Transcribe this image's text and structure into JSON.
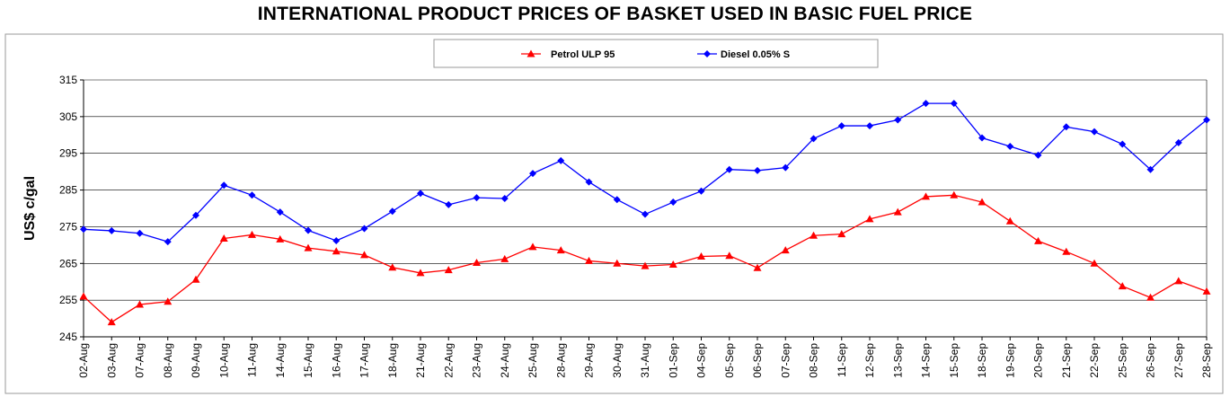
{
  "chart_data": {
    "type": "line",
    "title": "INTERNATIONAL PRODUCT PRICES OF BASKET USED IN BASIC FUEL PRICE",
    "xlabel": "",
    "ylabel": "US$ c/gal",
    "ylim": [
      245,
      315
    ],
    "yticks": [
      245,
      255,
      265,
      275,
      285,
      295,
      305,
      315
    ],
    "grid": "horizontal",
    "legend_position": "top-center",
    "categories": [
      "02-Aug",
      "03-Aug",
      "07-Aug",
      "08-Aug",
      "09-Aug",
      "10-Aug",
      "11-Aug",
      "14-Aug",
      "15-Aug",
      "16-Aug",
      "17-Aug",
      "18-Aug",
      "21-Aug",
      "22-Aug",
      "23-Aug",
      "24-Aug",
      "25-Aug",
      "28-Aug",
      "29-Aug",
      "30-Aug",
      "31-Aug",
      "01-Sep",
      "04-Sep",
      "05-Sep",
      "06-Sep",
      "07-Sep",
      "08-Sep",
      "11-Sep",
      "12-Sep",
      "13-Sep",
      "14-Sep",
      "15-Sep",
      "18-Sep",
      "19-Sep",
      "20-Sep",
      "21-Sep",
      "22-Sep",
      "25-Sep",
      "26-Sep",
      "27-Sep",
      "28-Sep"
    ],
    "series": [
      {
        "name": "Petrol ULP 95",
        "color": "#ff0000",
        "marker": "triangle",
        "values": [
          256.0,
          249.0,
          253.8,
          254.6,
          260.6,
          271.8,
          272.8,
          271.6,
          269.2,
          268.3,
          267.3,
          263.9,
          262.4,
          263.2,
          265.2,
          266.2,
          269.5,
          268.6,
          265.7,
          265.0,
          264.3,
          264.7,
          266.9,
          267.1,
          263.8,
          268.6,
          272.6,
          273.0,
          277.1,
          279.0,
          283.2,
          283.6,
          281.7,
          276.5,
          271.1,
          268.2,
          265.0,
          258.8,
          255.7,
          260.2,
          257.4
        ]
      },
      {
        "name": "Diesel 0.05% S",
        "color": "#0000ff",
        "marker": "diamond",
        "values": [
          274.3,
          273.9,
          273.2,
          270.9,
          278.1,
          286.3,
          283.6,
          279.0,
          274.0,
          271.2,
          274.5,
          279.2,
          284.1,
          281.0,
          282.9,
          282.7,
          289.5,
          293.0,
          287.2,
          282.4,
          278.4,
          281.7,
          284.7,
          290.6,
          290.3,
          291.1,
          299.0,
          302.5,
          302.5,
          304.1,
          308.6,
          308.6,
          299.2,
          296.9,
          294.5,
          302.2,
          300.9,
          297.5,
          290.6,
          297.9,
          304.1
        ]
      }
    ]
  }
}
